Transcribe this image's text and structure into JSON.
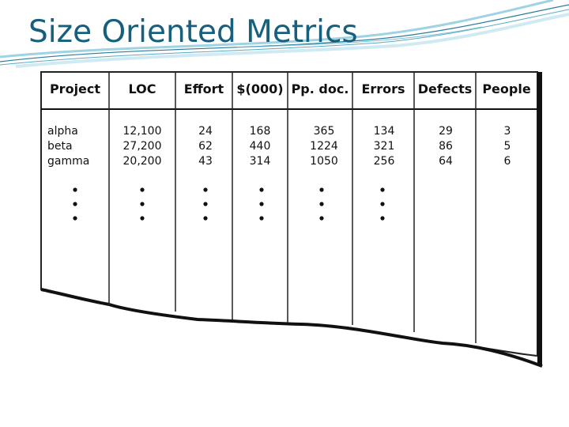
{
  "slide": {
    "title": "Size Oriented Metrics"
  },
  "colors": {
    "title": "#17607d",
    "swoosh_dark": "#2a7d9e",
    "swoosh_light": "#9fd3e2"
  },
  "table": {
    "headers": [
      "Project",
      "LOC",
      "Effort",
      "$(000)",
      "Pp. doc.",
      "Errors",
      "Defects",
      "People"
    ],
    "rows": [
      [
        "alpha",
        "12,100",
        "24",
        "168",
        "365",
        "134",
        "29",
        "3"
      ],
      [
        "beta",
        "27,200",
        "62",
        "440",
        "1224",
        "321",
        "86",
        "5"
      ],
      [
        "gamma",
        "20,200",
        "43",
        "314",
        "1050",
        "256",
        "64",
        "6"
      ]
    ],
    "ellipsis_columns": [
      "Project",
      "LOC",
      "Effort",
      "$(000)",
      "Pp. doc.",
      "Errors"
    ]
  }
}
